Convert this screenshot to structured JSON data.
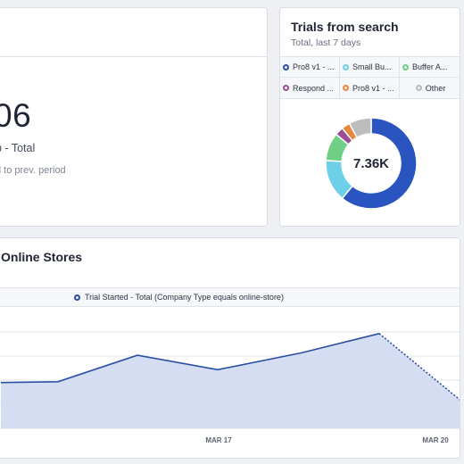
{
  "left_card": {
    "big_number": "06",
    "metric_label": "p - Total",
    "compare_text": "d to prev. period"
  },
  "trials_card": {
    "title": "Trials from search",
    "subtitle": "Total, last 7 days",
    "legend": [
      {
        "label": "Pro8 v1 - ...",
        "color": "#2a4ea3"
      },
      {
        "label": "Small Bu...",
        "color": "#6dcfe8"
      },
      {
        "label": "Buffer A...",
        "color": "#6fcf86"
      },
      {
        "label": "Respond ...",
        "color": "#9b4e97"
      },
      {
        "label": "Pro8 v1 - ...",
        "color": "#e8883c"
      },
      {
        "label": "Other",
        "color": "#b9b9b9"
      }
    ],
    "center_value": "7.36K"
  },
  "bottom_card": {
    "title": "Online Stores",
    "series_label": "Trial Started - Total (Company Type equals online-store)",
    "x_ticks": [
      "MAR 17",
      "MAR 20"
    ]
  },
  "chart_data": [
    {
      "type": "pie",
      "title": "Trials from search",
      "subtitle": "Total, last 7 days",
      "center_label": "7.36K",
      "categories": [
        "Pro8 v1 - ...",
        "Small Bu...",
        "Buffer A...",
        "Respond ...",
        "Pro8 v1 - ...",
        "Other"
      ],
      "values": [
        61,
        15,
        10,
        3,
        3,
        8
      ],
      "colors": [
        "#2a55c0",
        "#6dcfe8",
        "#6fcf86",
        "#9b4e97",
        "#e8883c",
        "#bdbdbd"
      ]
    },
    {
      "type": "area",
      "title": "Online Stores",
      "series": [
        {
          "name": "Trial Started - Total (Company Type equals online-store)",
          "values": [
            57,
            58,
            91,
            73,
            94,
            118,
            34
          ],
          "dashed_last_segment": true
        }
      ],
      "x_ticks": [
        "MAR 17",
        "MAR 20"
      ],
      "ylim": [
        0,
        150
      ],
      "grid": true
    }
  ]
}
